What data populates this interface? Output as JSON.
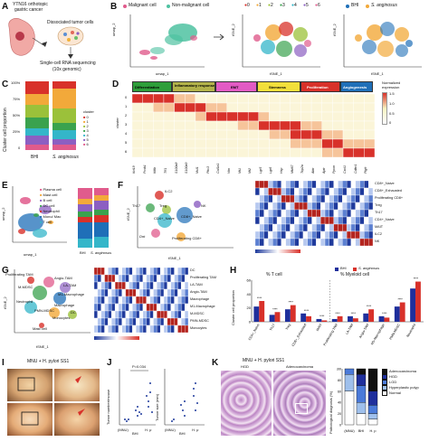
{
  "panel_letters": [
    "A",
    "B",
    "C",
    "D",
    "E",
    "F",
    "G",
    "H",
    "I",
    "J",
    "K"
  ],
  "A": {
    "title_1": "YTN16 orthotopic",
    "title_2": "gastric cancer",
    "dissociated": "Dissociated tumor cells",
    "seq_1": "Single-cell RNA sequencing",
    "seq_2": "(10x genomic)"
  },
  "B": {
    "legend_malignant": "Malignant cell",
    "legend_nonmalignant": "Non-malignant cell",
    "umap_x": "umap_1",
    "umap_y": "umap_2",
    "tsne_x": "tSNE_1",
    "tsne_y": "tSNE_2",
    "cluster_legend": [
      "0",
      "1",
      "2",
      "3",
      "4",
      "5",
      "6"
    ],
    "group_legend": [
      "BHI",
      "S. anginosus"
    ],
    "tsne_ticks_x": [
      "-40",
      "-20",
      "0",
      "20",
      "40"
    ],
    "tsne_ticks_y": [
      "40",
      "20",
      "0",
      "-20",
      "-40"
    ],
    "umap_ticks_x": [
      "-10",
      "0",
      "10"
    ],
    "umap_ticks_y": [
      "10",
      "0",
      "-10"
    ]
  },
  "C": {
    "ylabel": "Cluster cell proportion",
    "yticks": [
      "100%",
      "75%",
      "50%",
      "25%",
      "0"
    ],
    "legend_title": "cluster",
    "clusters": [
      "0",
      "1",
      "2",
      "3",
      "4",
      "5",
      "6"
    ],
    "xlabels": [
      "BHI",
      "S. anginosus"
    ]
  },
  "D": {
    "categories": [
      "Differentiation",
      "Inflammatory response",
      "EMT",
      "Stemness",
      "Proliferation",
      "Angiogenesis"
    ],
    "category_colors": [
      "#2e9e3a",
      "#8a8a1e",
      "#e25bc4",
      "#f2df3b",
      "#d8312a",
      "#1f6fb8"
    ],
    "ylabel": "cluster",
    "rows": [
      "0",
      "1",
      "2",
      "3",
      "4",
      "5",
      "6"
    ],
    "genes": [
      "Krt19",
      "Pcsk1",
      "Kitlb",
      "Tff1",
      "S100a8",
      "S100a9",
      "Mcl1",
      "Pkc3",
      "Col1a1",
      "Vim",
      "Mt1",
      "Mt2",
      "Lgr5",
      "Lgr6",
      "Hsp",
      "Mki67",
      "Top2a",
      "Aktr",
      "Aptr",
      "Ppcm",
      "Cxcl1",
      "Cdkn1",
      "Plgfr"
    ],
    "norm_label_1": "Normalized",
    "norm_label_2": "expression",
    "norm_ticks": [
      "1.5",
      "1.0",
      "0.5",
      "0"
    ]
  },
  "E": {
    "legend": [
      "Plasma cell",
      "Mast cell",
      "B cell",
      "DC cell",
      "Neutrophil",
      "Mono/ Mac",
      "T cell"
    ],
    "legend_colors": [
      "#e05b8c",
      "#f2a93a",
      "#8c5fc2",
      "#3aa24e",
      "#d8312a",
      "#1f6fb8",
      "#34b6c9"
    ],
    "x": "umap_1",
    "y": "umap_2",
    "bar_ylabel": "Cluster cell proportion",
    "bar_xlabels": [
      "BHI",
      "S. anginosus"
    ],
    "bar_yticks": [
      "100%",
      "75%",
      "50%",
      "25%",
      "0"
    ]
  },
  "F": {
    "labels": [
      "ILC2",
      "Th17",
      "Treg",
      "CD4+_Naive",
      "CD8+_Naive",
      "NK",
      "Proliferating CD8+",
      "Dnt"
    ],
    "x": "tSNE_1",
    "y": "tSNE_2",
    "heat_rows": [
      "CD8+_Naive",
      "CD8+_Exhausted",
      "Proliferating CD8+",
      "Treg",
      "Th17",
      "CD4+_Naive",
      "MAIT",
      "ILC2",
      "NK"
    ],
    "heat_ticks": [
      "3",
      "2",
      "1",
      "0",
      "-1",
      "-2"
    ]
  },
  "G": {
    "labels": [
      "Proliferating TAM",
      "Angio-TAM",
      "LA-TAM",
      "M-MDSC",
      "M1-Macrophage",
      "Neutrophil",
      "Macrophage",
      "PMN-MDSC",
      "DC",
      "Monocytes",
      "Mast cell"
    ],
    "x": "tSNE_1",
    "y": "tSNE_2",
    "heat_rows": [
      "DC",
      "Proliferating TAM",
      "LA-TAM",
      "Angio-TAM",
      "Macrophage",
      "M1-Macrophage",
      "M-MDSC",
      "PMN-MDSC",
      "Monocytes"
    ],
    "heat_ticks": [
      "2",
      "1",
      "0",
      "-1",
      "-2"
    ]
  },
  "H": {
    "legend": [
      "BHI",
      "S. anginosus"
    ],
    "legend_colors": [
      "#1f2f9c",
      "#d8312a"
    ],
    "ylabel": "Cluster cell proportion",
    "left_title": "% T cell",
    "right_title": "% Myeloid cell",
    "yticks": [
      "60",
      "40",
      "20",
      "0"
    ],
    "categories": [
      "CD4+_Naive",
      "Th17",
      "Treg",
      "CD8+_Exhausted",
      "MAIT",
      "Proliferating TAM",
      "LA-TAM",
      "Angio-TAM",
      "M1-Macrophage",
      "PMN-MDSC",
      "Neutrophil"
    ],
    "stars": [
      "****",
      "****",
      "****",
      "****",
      "****",
      "****",
      "****",
      "****",
      "****",
      "****",
      "****"
    ],
    "series": [
      {
        "name": "BHI",
        "values": [
          22,
          10,
          18,
          12,
          4,
          4,
          8,
          12,
          8,
          22,
          48
        ]
      },
      {
        "name": "S. anginosus",
        "values": [
          30,
          14,
          24,
          8,
          2,
          8,
          5,
          18,
          6,
          28,
          58
        ]
      }
    ]
  },
  "I": {
    "title": "MNU + H. pylori SS1"
  },
  "J": {
    "ylabel_left": "Tumor number/mouse",
    "ylabel_right": "Tumor size (mm)",
    "pvalue": "P=0.034",
    "groups": [
      "(MNU)",
      "BHI",
      "H. p"
    ],
    "left_yticks": [
      "20",
      "15",
      "10",
      "5",
      "0"
    ],
    "right_yticks": [
      "3",
      "2",
      "1",
      "0"
    ]
  },
  "K": {
    "title": "MNU + H. pylori SS1",
    "left_sub": "HGD",
    "right_sub": "Adenocarcinoma",
    "ylabel": "Pathological diagnosis (%)",
    "yticks": [
      "100",
      "80",
      "60",
      "40",
      "20",
      "0"
    ],
    "xlabels": [
      "(MNU)",
      "BHI",
      "H. p"
    ],
    "legend": [
      "Adenocarcinoma",
      "HGD",
      "LGD",
      "Hyperplastic polyp",
      "Normal"
    ],
    "legend_colors": [
      "#111111",
      "#1f2f9c",
      "#4a7ad9",
      "#9fc0ec",
      "#ffffff"
    ]
  }
}
